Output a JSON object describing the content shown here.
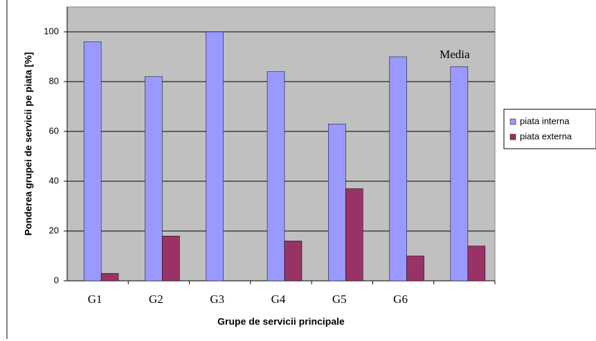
{
  "chart_data": {
    "type": "bar",
    "x_label": "Grupe de servicii principale",
    "y_label": "Ponderea grupei de servicii pe piata [%]",
    "annotation": "Media",
    "categories": [
      "G1",
      "G2",
      "G3",
      "G4",
      "G5",
      "G6",
      null
    ],
    "series": [
      {
        "name": "piata interna",
        "color": "#9999ff",
        "values": [
          96,
          82,
          100,
          84,
          63,
          90,
          86
        ]
      },
      {
        "name": "piata externa",
        "color": "#993366",
        "values": [
          3,
          18,
          0,
          16,
          37,
          10,
          14
        ]
      }
    ],
    "ylim": [
      0,
      110
    ],
    "yticks": [
      0,
      20,
      40,
      60,
      80,
      100
    ],
    "grid": true,
    "legend": "right"
  }
}
